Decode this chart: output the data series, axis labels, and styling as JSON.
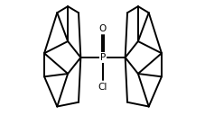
{
  "bg_color": "#ffffff",
  "line_color": "#000000",
  "line_width": 1.4,
  "P_label": "P",
  "O_label": "O",
  "Cl_label": "Cl",
  "font_size_P": 7.5,
  "font_size_Cl": 7.5,
  "font_size_O": 7.5,
  "xlim": [
    -2.3,
    2.3
  ],
  "ylim": [
    -1.35,
    1.35
  ]
}
